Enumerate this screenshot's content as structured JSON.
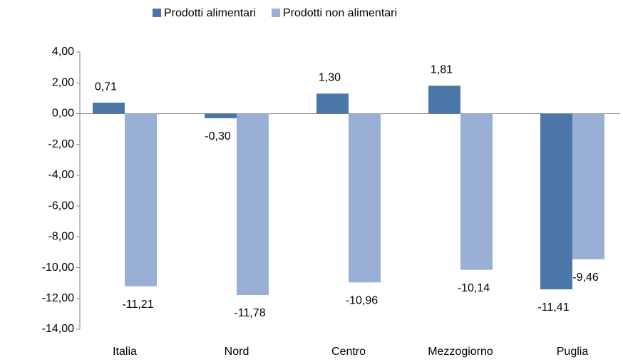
{
  "chart_data": {
    "type": "bar",
    "categories": [
      "Italia",
      "Nord",
      "Centro",
      "Mezzogiorno",
      "Puglia"
    ],
    "series": [
      {
        "name": "Prodotti alimentari",
        "color": "#4a76a8",
        "values": [
          0.71,
          -0.3,
          1.3,
          1.81,
          -11.41
        ],
        "value_labels": [
          "0,71",
          "-0,30",
          "1,30",
          "1,81",
          "-11,41"
        ]
      },
      {
        "name": "Prodotti non alimentari",
        "color": "#9aafd6",
        "values": [
          -11.21,
          -11.78,
          -10.96,
          -10.14,
          -9.46
        ],
        "value_labels": [
          "-11,21",
          "-11,78",
          "-10,96",
          "-10,14",
          "-9,46"
        ]
      }
    ],
    "ylim": [
      -14,
      4
    ],
    "yticks": [
      {
        "value": -14,
        "label": "-14,00"
      },
      {
        "value": -12,
        "label": "-12,00"
      },
      {
        "value": -10,
        "label": "-10,00"
      },
      {
        "value": -8,
        "label": "-8,00"
      },
      {
        "value": -6,
        "label": "-6,00"
      },
      {
        "value": -4,
        "label": "-4,00"
      },
      {
        "value": -2,
        "label": "-2,00"
      },
      {
        "value": 0,
        "label": "0,00"
      },
      {
        "value": 2,
        "label": "2,00"
      },
      {
        "value": 4,
        "label": "4,00"
      }
    ],
    "legend": "top"
  }
}
